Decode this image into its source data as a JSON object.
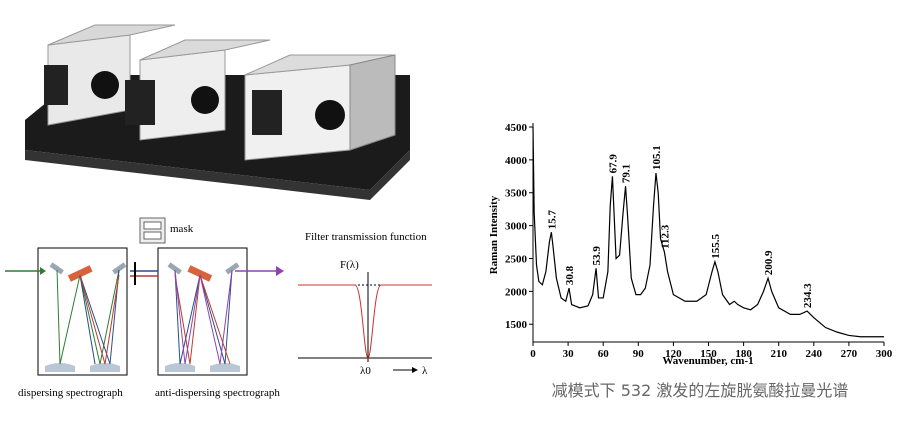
{
  "chart_data": {
    "type": "line",
    "x_label": "Wavenumber, cm-1",
    "y_label": "Raman Intensity",
    "caption": "减模式下 532 激发的左旋胱氨酸拉曼光谱",
    "xlim": [
      0,
      300
    ],
    "xticks": [
      0,
      30,
      60,
      90,
      120,
      150,
      180,
      210,
      240,
      270,
      300
    ],
    "ylim": [
      1230,
      4500
    ],
    "yticks": [
      1500,
      2000,
      2500,
      3000,
      3500,
      4000,
      4500
    ],
    "series": [
      {
        "color": "#000000",
        "x": [
          0,
          1,
          3,
          5,
          8,
          11,
          14,
          15.7,
          17,
          20,
          24,
          28,
          30.8,
          33,
          40,
          47,
          51,
          53.9,
          56,
          60,
          64,
          66,
          67.9,
          69,
          71,
          74,
          77,
          79.1,
          81,
          84,
          88,
          92,
          96,
          100,
          103,
          105.1,
          107,
          109,
          112.3,
          115,
          120,
          130,
          140,
          148,
          153,
          155.5,
          158,
          162,
          168,
          172,
          175,
          180,
          186,
          192,
          197,
          200.9,
          204,
          210,
          220,
          228,
          234.3,
          240,
          250,
          260,
          270,
          280,
          300
        ],
        "values": [
          4500,
          3200,
          2400,
          2150,
          2100,
          2300,
          2750,
          2900,
          2700,
          2200,
          1900,
          1850,
          2050,
          1800,
          1750,
          1780,
          1950,
          2350,
          1900,
          1900,
          2300,
          3300,
          3750,
          3300,
          2500,
          2550,
          3200,
          3600,
          3100,
          2200,
          1950,
          1950,
          2050,
          2400,
          3300,
          3800,
          3500,
          2800,
          2600,
          2300,
          1950,
          1850,
          1850,
          1950,
          2300,
          2450,
          2300,
          1950,
          1800,
          1850,
          1800,
          1750,
          1720,
          1800,
          2000,
          2200,
          2000,
          1750,
          1650,
          1650,
          1700,
          1600,
          1450,
          1380,
          1330,
          1310,
          1310
        ]
      }
    ],
    "peak_labels": [
      15.7,
      30.8,
      53.9,
      67.9,
      79.1,
      105.1,
      112.3,
      155.5,
      200.9,
      234.3
    ]
  },
  "diagram": {
    "mask": "mask",
    "filter_title": "Filter transmission function",
    "f_label": "F(λ)",
    "lambda0": "λ0",
    "lambda": "λ",
    "left_caption": "dispersing spectrograph",
    "right_caption": "anti-dispersing spectrograph"
  }
}
